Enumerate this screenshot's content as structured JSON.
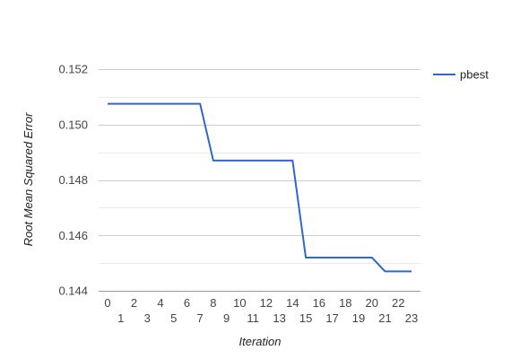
{
  "chart_data": {
    "type": "line",
    "title": "",
    "xlabel": "Iteration",
    "ylabel": "Root Mean Squared Error",
    "x": [
      0,
      1,
      2,
      3,
      4,
      5,
      6,
      7,
      8,
      9,
      10,
      11,
      12,
      13,
      14,
      15,
      16,
      17,
      18,
      19,
      20,
      21,
      22,
      23
    ],
    "series": [
      {
        "name": "pbest",
        "color": "#3366cc",
        "values": [
          0.15075,
          0.15075,
          0.15075,
          0.15075,
          0.15075,
          0.15075,
          0.15075,
          0.15075,
          0.1487,
          0.1487,
          0.1487,
          0.1487,
          0.1487,
          0.1487,
          0.1487,
          0.1452,
          0.1452,
          0.1452,
          0.1452,
          0.1452,
          0.1452,
          0.1447,
          0.1447,
          0.1447
        ]
      }
    ],
    "xlim": [
      0,
      23
    ],
    "ylim": [
      0.144,
      0.152
    ],
    "yticks": [
      "0.144",
      "0.146",
      "0.148",
      "0.150",
      "0.152"
    ],
    "xticks_row1": [
      "0",
      "2",
      "4",
      "6",
      "8",
      "10",
      "12",
      "14",
      "16",
      "18",
      "20",
      "22"
    ],
    "xticks_row2": [
      "1",
      "3",
      "5",
      "7",
      "9",
      "11",
      "13",
      "15",
      "17",
      "19",
      "21",
      "23"
    ],
    "grid": true,
    "legend_position": "right"
  }
}
